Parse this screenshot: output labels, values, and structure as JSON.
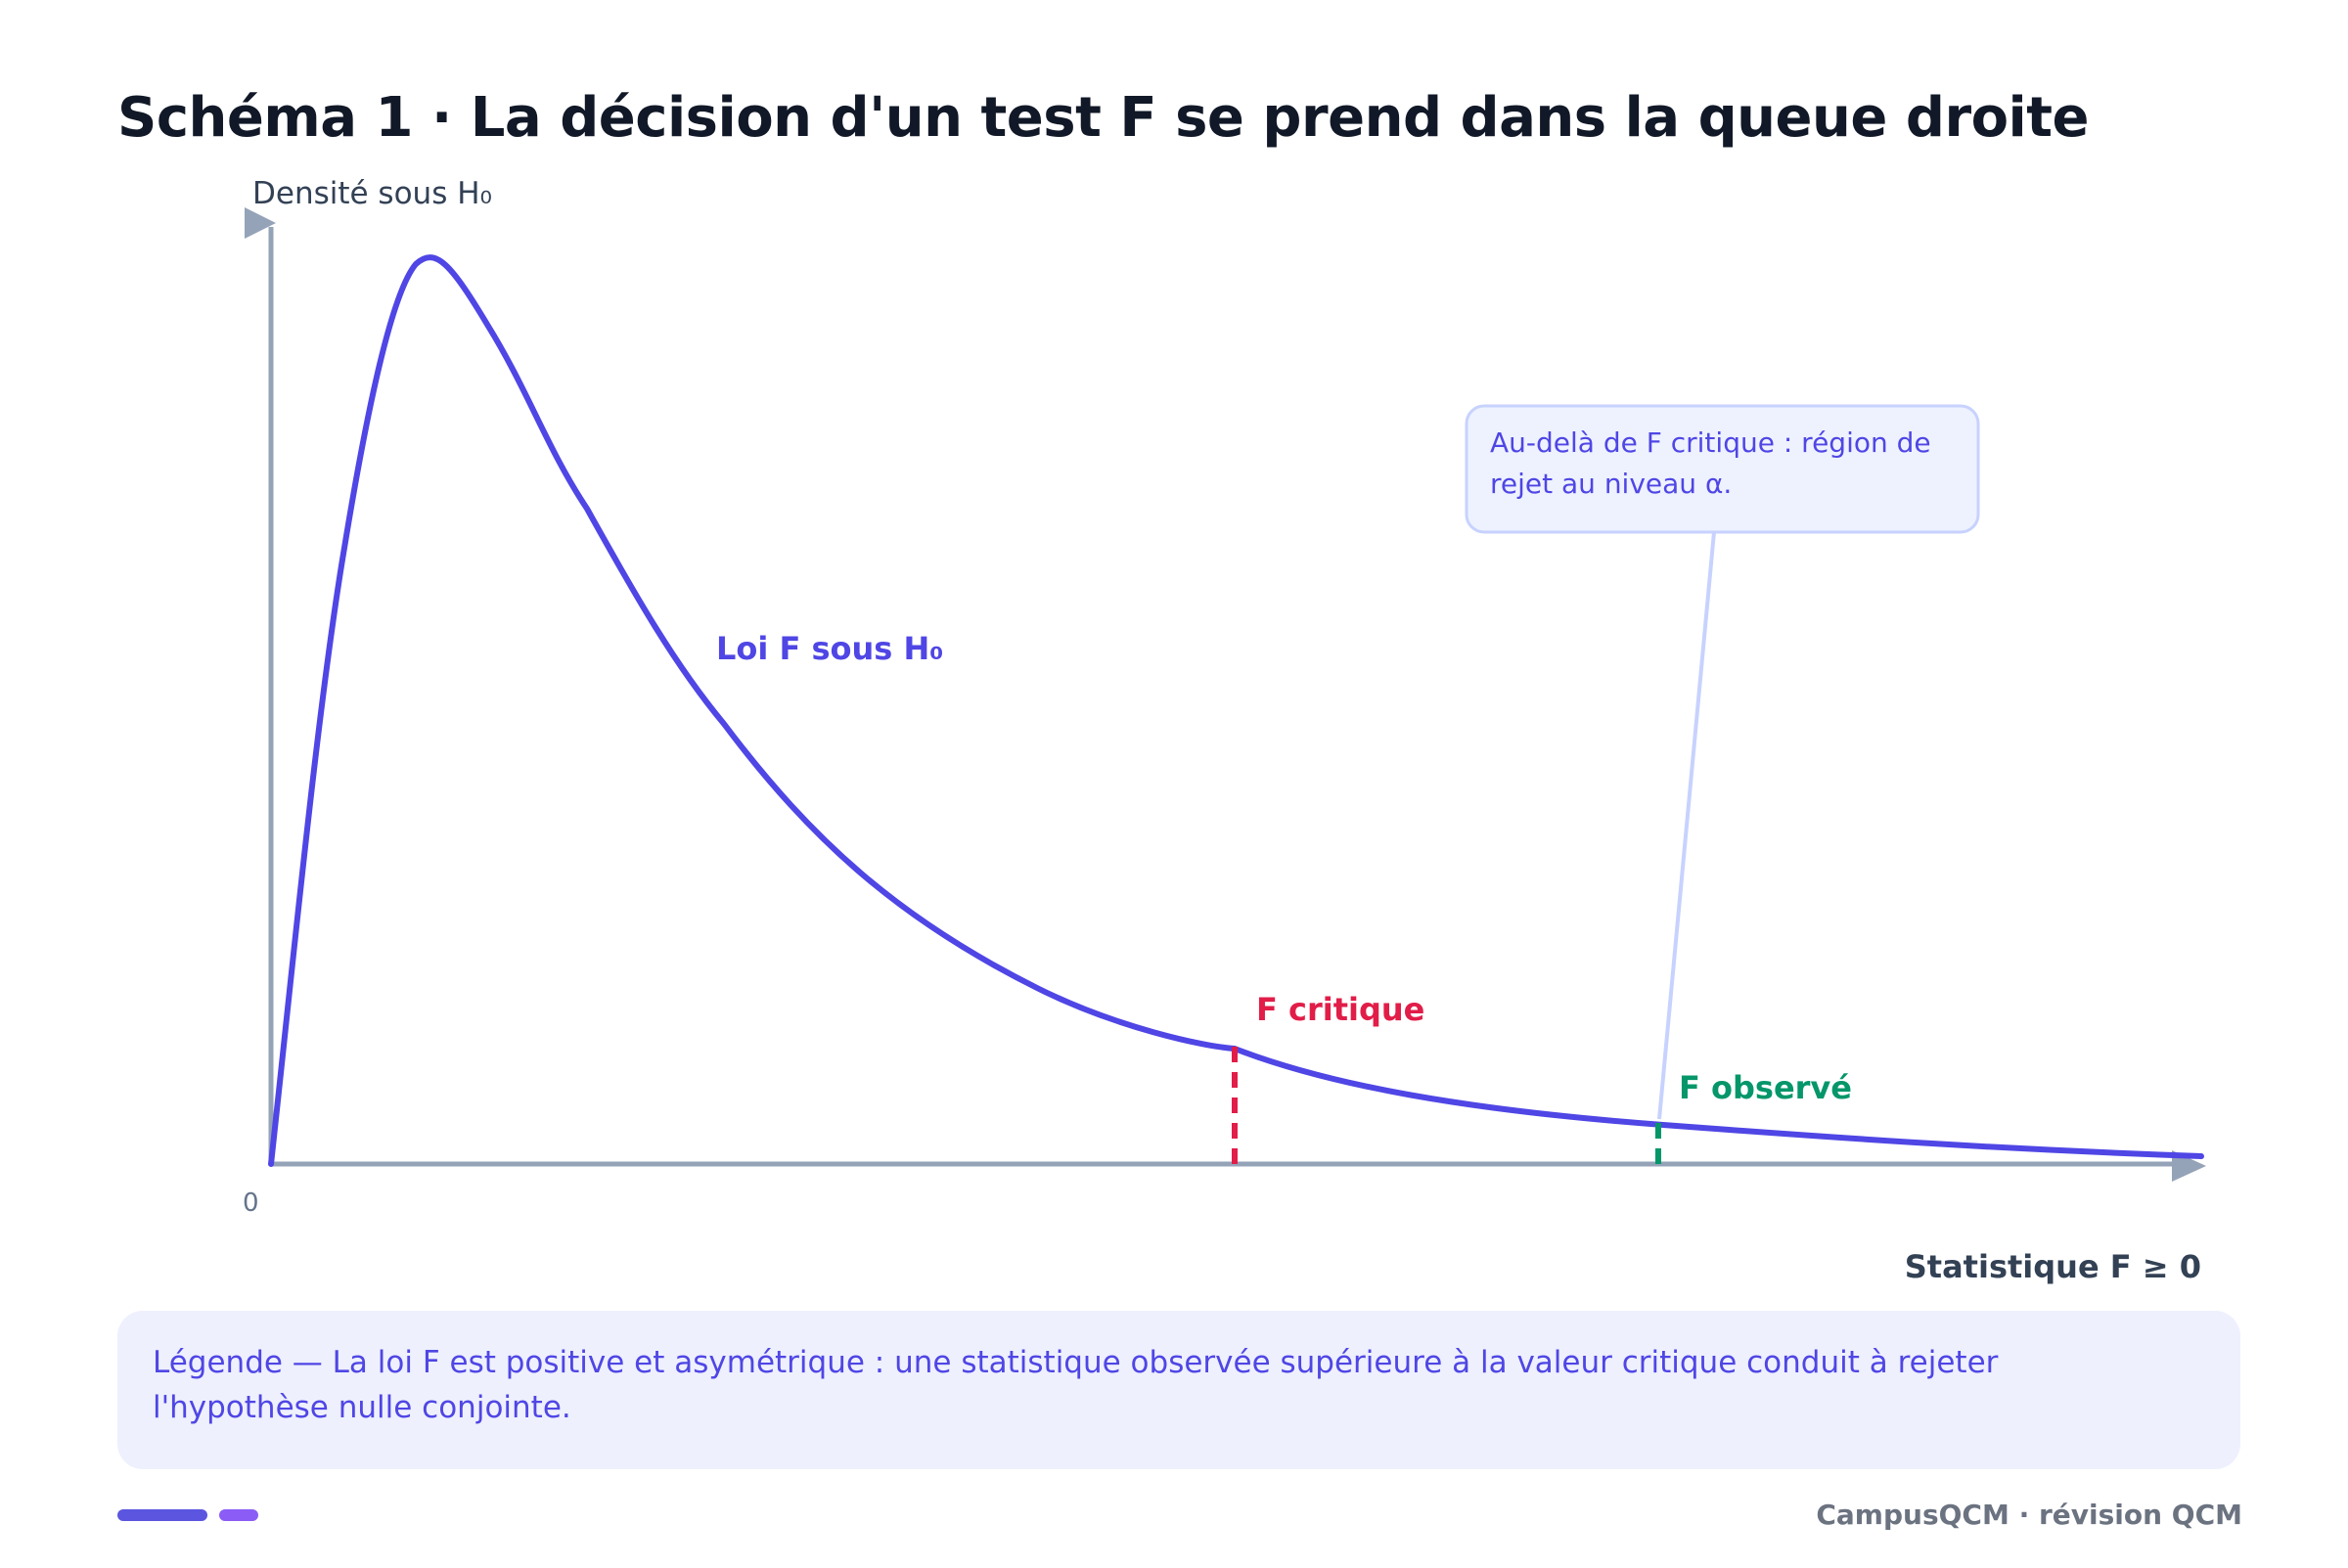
{
  "title": "Schéma 1 · La décision d'un test F se prend dans la queue droite",
  "axes": {
    "y_label": "Densité sous H₀",
    "x_label": "Statistique F ≥ 0",
    "origin_label": "0"
  },
  "curve": {
    "label": "Loi F sous H₀"
  },
  "markers": {
    "critical_label": "F critique",
    "observed_label": "F observé"
  },
  "callout": {
    "line1": "Au-delà de F critique : région de",
    "line2": "rejet au niveau α."
  },
  "legend": {
    "text": "Légende — La loi F est positive et asymétrique : une statistique observée supérieure à la valeur critique conduit à rejeter l'hypothèse nulle conjointe."
  },
  "footer": {
    "brand": "CampusQCM · révision QCM"
  },
  "colors": {
    "curve": "#4f46e5",
    "axis": "#94a3b8",
    "critical": "#e11d48",
    "observed": "#059669",
    "callout_bg": "#eef2ff",
    "callout_border": "#c7d2fe"
  }
}
